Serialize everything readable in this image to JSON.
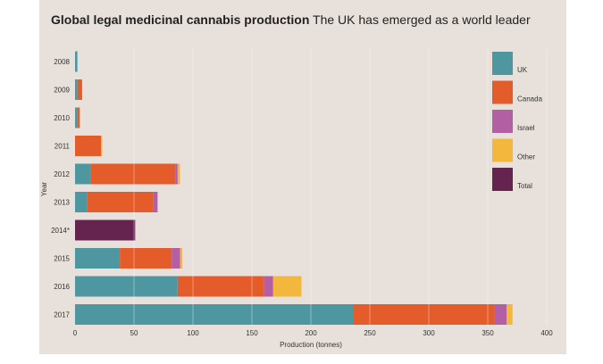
{
  "chart_data": {
    "type": "bar",
    "orientation": "horizontal",
    "stacked": true,
    "title": "Global legal medicinal cannabis production",
    "subtitle": "The UK has emerged as a world leader",
    "xlabel": "Production (tonnes)",
    "ylabel": "Year",
    "xlim": [
      0,
      400
    ],
    "xticks": [
      0,
      50,
      100,
      150,
      200,
      250,
      300,
      350,
      400
    ],
    "grid": "vertical",
    "legend_position": "right",
    "categories": [
      "2008",
      "2009",
      "2010",
      "2011",
      "2012",
      "2013",
      "2014*",
      "2015",
      "2016",
      "2017"
    ],
    "series": [
      {
        "name": "UK",
        "color": "#4f97a0",
        "values": [
          2,
          2,
          2,
          0,
          13,
          10,
          0,
          38,
          87,
          236
        ]
      },
      {
        "name": "Canada",
        "color": "#e35c2a",
        "values": [
          0,
          4,
          2,
          22,
          72,
          56,
          0,
          44,
          73,
          120
        ]
      },
      {
        "name": "Israel",
        "color": "#b35fa3",
        "values": [
          0,
          0,
          0,
          0,
          2,
          4,
          0,
          7,
          8,
          10
        ]
      },
      {
        "name": "Other",
        "color": "#f4b73d",
        "values": [
          0,
          0,
          0,
          1,
          2,
          0,
          0,
          2,
          24,
          5
        ]
      },
      {
        "name": "Total",
        "color": "#64244f",
        "values": [
          0,
          0,
          0,
          0,
          0,
          0,
          51,
          0,
          0,
          0
        ]
      }
    ]
  }
}
